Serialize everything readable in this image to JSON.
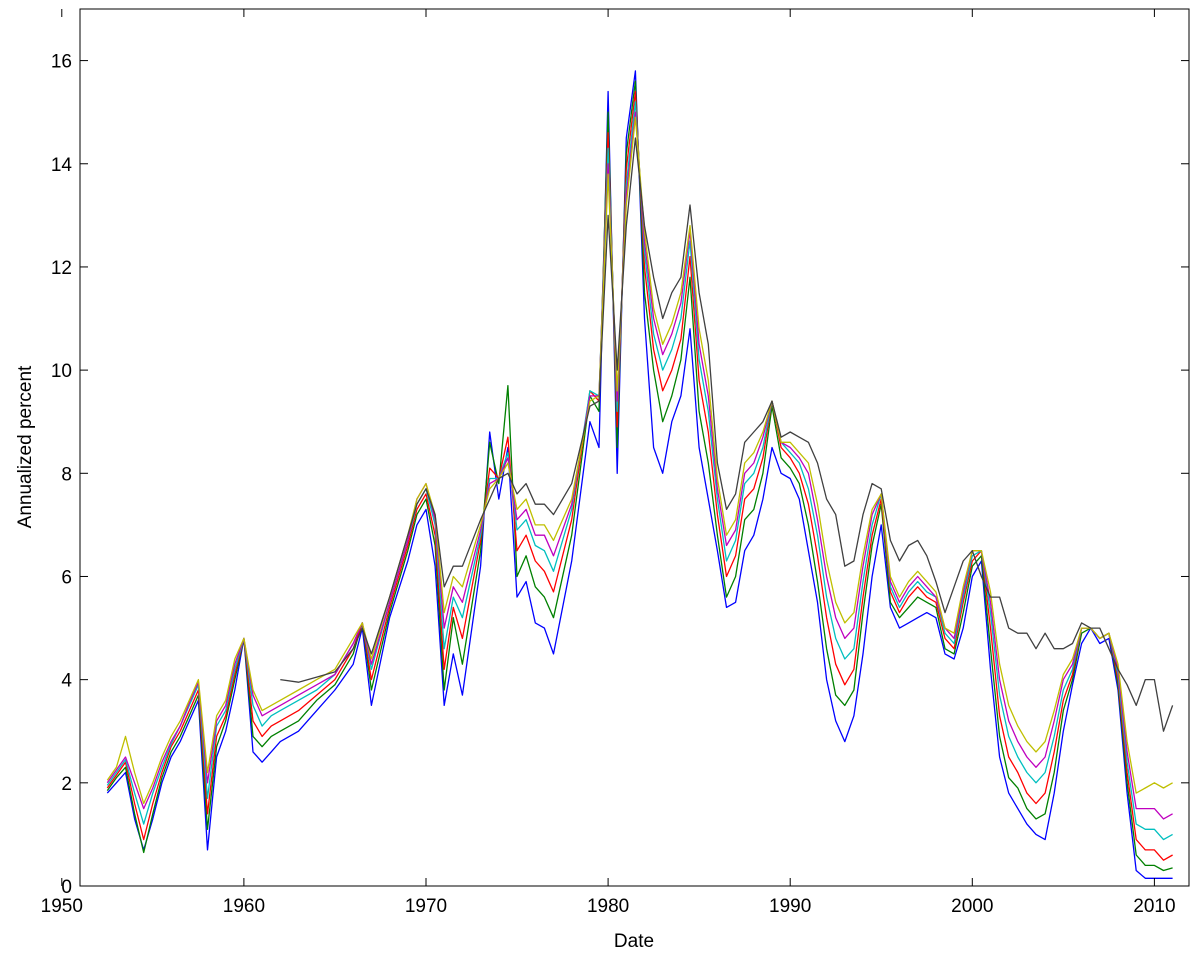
{
  "chart_data": {
    "type": "line",
    "title": "",
    "xlabel": "Date",
    "ylabel": "Annualized percent",
    "xlim": [
      1951,
      2011.9
    ],
    "ylim": [
      0,
      17
    ],
    "xticks": [
      1950,
      1960,
      1970,
      1980,
      1990,
      2000,
      2010
    ],
    "yticks": [
      0,
      2,
      4,
      6,
      8,
      10,
      12,
      14,
      16
    ],
    "grid": false,
    "legend": "none",
    "x": [
      1952.5,
      1953.0,
      1953.5,
      1954.0,
      1954.5,
      1955.0,
      1955.5,
      1956.0,
      1956.5,
      1957.0,
      1957.5,
      1958.0,
      1958.5,
      1959.0,
      1959.5,
      1960.0,
      1960.5,
      1961.0,
      1961.5,
      1962.0,
      1963.0,
      1964.0,
      1965.0,
      1966.0,
      1966.5,
      1967.0,
      1968.0,
      1969.0,
      1969.5,
      1970.0,
      1970.5,
      1971.0,
      1971.5,
      1972.0,
      1973.0,
      1973.5,
      1974.0,
      1974.5,
      1975.0,
      1975.5,
      1976.0,
      1976.5,
      1977.0,
      1978.0,
      1979.0,
      1979.5,
      1980.0,
      1980.5,
      1981.0,
      1981.5,
      1982.0,
      1982.5,
      1983.0,
      1983.5,
      1984.0,
      1984.5,
      1985.0,
      1985.5,
      1986.0,
      1986.5,
      1987.0,
      1987.5,
      1988.0,
      1988.5,
      1989.0,
      1989.5,
      1990.0,
      1990.5,
      1991.0,
      1991.5,
      1992.0,
      1992.5,
      1993.0,
      1993.5,
      1994.0,
      1994.5,
      1995.0,
      1995.5,
      1996.0,
      1996.5,
      1997.0,
      1997.5,
      1998.0,
      1998.5,
      1999.0,
      1999.5,
      2000.0,
      2000.5,
      2001.0,
      2001.5,
      2002.0,
      2002.5,
      2003.0,
      2003.5,
      2004.0,
      2004.5,
      2005.0,
      2005.5,
      2006.0,
      2006.5,
      2007.0,
      2007.5,
      2008.0,
      2008.5,
      2009.0,
      2009.5,
      2010.0,
      2010.5,
      2011.0
    ],
    "series": [
      {
        "color": "#0000ff",
        "values": [
          1.8,
          2.0,
          2.2,
          1.3,
          0.7,
          1.3,
          2.0,
          2.5,
          2.8,
          3.2,
          3.6,
          0.7,
          2.5,
          3.0,
          3.8,
          4.8,
          2.6,
          2.4,
          2.6,
          2.8,
          3.0,
          3.4,
          3.8,
          4.3,
          5.0,
          3.5,
          5.2,
          6.3,
          7.0,
          7.3,
          6.2,
          3.5,
          4.5,
          3.7,
          6.2,
          8.8,
          7.5,
          8.5,
          5.6,
          5.9,
          5.1,
          5.0,
          4.5,
          6.3,
          9.0,
          8.5,
          15.4,
          8.0,
          14.5,
          15.8,
          11.0,
          8.5,
          8.0,
          9.0,
          9.5,
          10.8,
          8.5,
          7.5,
          6.5,
          5.4,
          5.5,
          6.5,
          6.8,
          7.5,
          8.5,
          8.0,
          7.9,
          7.5,
          6.5,
          5.5,
          4.0,
          3.2,
          2.8,
          3.3,
          4.5,
          6.0,
          7.0,
          5.4,
          5.0,
          5.1,
          5.2,
          5.3,
          5.2,
          4.5,
          4.4,
          5.0,
          6.0,
          6.3,
          4.2,
          2.5,
          1.8,
          1.5,
          1.2,
          1.0,
          0.9,
          1.8,
          3.0,
          3.9,
          4.7,
          5.0,
          4.7,
          4.8,
          3.8,
          1.8,
          0.3,
          0.15,
          0.15,
          0.15,
          0.15
        ]
      },
      {
        "color": "#008000",
        "values": [
          1.85,
          2.1,
          2.3,
          1.4,
          0.65,
          1.4,
          2.1,
          2.6,
          2.9,
          3.3,
          3.7,
          1.1,
          2.7,
          3.2,
          4.0,
          4.8,
          2.9,
          2.7,
          2.9,
          3.0,
          3.2,
          3.6,
          3.9,
          4.5,
          5.1,
          3.8,
          5.3,
          6.5,
          7.2,
          7.5,
          6.6,
          3.8,
          5.2,
          4.3,
          6.5,
          8.6,
          7.8,
          9.7,
          6.0,
          6.4,
          5.8,
          5.6,
          5.2,
          6.8,
          9.5,
          9.2,
          15.0,
          8.5,
          14.2,
          15.6,
          11.5,
          10.0,
          9.0,
          9.5,
          10.2,
          11.8,
          9.2,
          8.2,
          6.8,
          5.6,
          6.0,
          7.1,
          7.3,
          8.0,
          9.3,
          8.3,
          8.1,
          7.8,
          7.0,
          5.9,
          4.6,
          3.7,
          3.5,
          3.8,
          5.3,
          6.6,
          7.4,
          5.5,
          5.2,
          5.4,
          5.6,
          5.5,
          5.4,
          4.6,
          4.5,
          5.3,
          6.2,
          6.4,
          4.6,
          2.9,
          2.1,
          1.9,
          1.5,
          1.3,
          1.4,
          2.2,
          3.4,
          4.0,
          4.9,
          5.0,
          4.8,
          4.9,
          3.9,
          2.0,
          0.6,
          0.4,
          0.4,
          0.3,
          0.35
        ]
      },
      {
        "color": "#ff0000",
        "values": [
          1.9,
          2.15,
          2.4,
          1.6,
          0.9,
          1.6,
          2.2,
          2.7,
          3.0,
          3.4,
          3.8,
          1.4,
          2.9,
          3.3,
          4.1,
          4.8,
          3.2,
          2.9,
          3.1,
          3.2,
          3.4,
          3.7,
          4.0,
          4.6,
          5.1,
          4.0,
          5.4,
          6.6,
          7.3,
          7.6,
          6.8,
          4.2,
          5.4,
          4.8,
          6.7,
          8.1,
          7.9,
          8.7,
          6.5,
          6.8,
          6.3,
          6.1,
          5.7,
          7.1,
          9.6,
          9.4,
          14.6,
          8.9,
          13.9,
          15.4,
          12.0,
          10.4,
          9.6,
          10.0,
          10.6,
          12.2,
          9.8,
          8.8,
          7.2,
          6.0,
          6.4,
          7.5,
          7.7,
          8.3,
          9.4,
          8.5,
          8.3,
          8.0,
          7.4,
          6.4,
          5.2,
          4.3,
          3.9,
          4.2,
          5.6,
          6.8,
          7.5,
          5.7,
          5.3,
          5.6,
          5.8,
          5.6,
          5.5,
          4.8,
          4.6,
          5.5,
          6.3,
          6.5,
          5.0,
          3.3,
          2.5,
          2.2,
          1.8,
          1.6,
          1.8,
          2.6,
          3.6,
          4.1,
          5.0,
          5.0,
          4.8,
          4.9,
          4.0,
          2.2,
          0.9,
          0.7,
          0.7,
          0.5,
          0.6
        ]
      },
      {
        "color": "#00bfbf",
        "values": [
          1.95,
          2.2,
          2.45,
          1.8,
          1.2,
          1.8,
          2.3,
          2.75,
          3.1,
          3.5,
          3.9,
          1.7,
          3.1,
          3.4,
          4.2,
          4.8,
          3.5,
          3.1,
          3.3,
          3.4,
          3.6,
          3.8,
          4.1,
          4.7,
          5.1,
          4.2,
          5.5,
          6.7,
          7.4,
          7.7,
          7.0,
          4.6,
          5.6,
          5.2,
          6.8,
          7.9,
          7.9,
          8.4,
          6.9,
          7.1,
          6.6,
          6.5,
          6.1,
          7.3,
          9.6,
          9.5,
          14.3,
          9.2,
          13.6,
          15.2,
          12.3,
          10.7,
          10.0,
          10.4,
          11.0,
          12.5,
          10.2,
          9.2,
          7.5,
          6.3,
          6.7,
          7.8,
          8.0,
          8.5,
          9.4,
          8.6,
          8.4,
          8.2,
          7.7,
          6.8,
          5.6,
          4.8,
          4.4,
          4.6,
          5.9,
          7.0,
          7.6,
          5.8,
          5.4,
          5.7,
          5.9,
          5.7,
          5.6,
          4.9,
          4.7,
          5.6,
          6.4,
          6.5,
          5.3,
          3.7,
          2.9,
          2.5,
          2.2,
          2.0,
          2.2,
          2.9,
          3.8,
          4.2,
          5.0,
          5.0,
          4.8,
          4.9,
          4.1,
          2.4,
          1.2,
          1.1,
          1.1,
          0.9,
          1.0
        ]
      },
      {
        "color": "#bf00bf",
        "values": [
          2.0,
          2.25,
          2.5,
          2.0,
          1.5,
          1.9,
          2.4,
          2.8,
          3.1,
          3.55,
          3.95,
          2.0,
          3.2,
          3.5,
          4.3,
          4.8,
          3.7,
          3.3,
          3.4,
          3.5,
          3.7,
          3.9,
          4.1,
          4.7,
          5.1,
          4.3,
          5.5,
          6.7,
          7.5,
          7.8,
          7.1,
          5.0,
          5.8,
          5.5,
          6.9,
          7.8,
          7.9,
          8.3,
          7.1,
          7.3,
          6.8,
          6.8,
          6.4,
          7.4,
          9.5,
          9.5,
          14.0,
          9.4,
          13.4,
          15.0,
          12.5,
          11.0,
          10.3,
          10.7,
          11.3,
          12.7,
          10.5,
          9.5,
          7.7,
          6.6,
          6.9,
          8.0,
          8.2,
          8.7,
          9.4,
          8.6,
          8.5,
          8.3,
          8.0,
          7.1,
          6.0,
          5.2,
          4.8,
          5.0,
          6.2,
          7.2,
          7.6,
          5.9,
          5.5,
          5.8,
          6.0,
          5.8,
          5.6,
          5.0,
          4.8,
          5.7,
          6.5,
          6.5,
          5.5,
          4.0,
          3.2,
          2.8,
          2.5,
          2.3,
          2.5,
          3.2,
          4.0,
          4.3,
          5.0,
          5.0,
          4.8,
          4.9,
          4.2,
          2.6,
          1.5,
          1.5,
          1.5,
          1.3,
          1.4
        ]
      },
      {
        "color": "#bfbf00",
        "values": [
          2.05,
          2.3,
          2.9,
          2.2,
          1.6,
          2.0,
          2.5,
          2.9,
          3.2,
          3.6,
          4.0,
          2.2,
          3.3,
          3.6,
          4.4,
          4.8,
          3.8,
          3.4,
          3.5,
          3.6,
          3.8,
          4.0,
          4.2,
          4.8,
          5.1,
          4.4,
          5.6,
          6.8,
          7.5,
          7.8,
          7.2,
          5.3,
          6.0,
          5.8,
          7.0,
          7.7,
          7.9,
          8.2,
          7.3,
          7.5,
          7.0,
          7.0,
          6.7,
          7.5,
          9.4,
          9.5,
          13.8,
          9.6,
          13.2,
          14.9,
          12.7,
          11.2,
          10.5,
          10.9,
          11.5,
          12.8,
          10.8,
          9.8,
          7.9,
          6.8,
          7.1,
          8.2,
          8.4,
          8.8,
          9.4,
          8.6,
          8.6,
          8.4,
          8.2,
          7.4,
          6.3,
          5.5,
          5.1,
          5.3,
          6.4,
          7.3,
          7.6,
          6.0,
          5.6,
          5.9,
          6.1,
          5.9,
          5.7,
          5.0,
          4.9,
          5.8,
          6.5,
          6.5,
          5.7,
          4.3,
          3.5,
          3.1,
          2.8,
          2.6,
          2.8,
          3.4,
          4.1,
          4.4,
          5.0,
          5.0,
          4.8,
          4.9,
          4.3,
          2.8,
          1.8,
          1.9,
          2.0,
          1.9,
          2.0
        ]
      },
      {
        "color": "#404040",
        "values": [
          null,
          null,
          null,
          null,
          null,
          null,
          null,
          null,
          null,
          null,
          null,
          null,
          null,
          null,
          null,
          null,
          null,
          null,
          null,
          4.0,
          3.95,
          4.05,
          4.15,
          4.6,
          5.0,
          4.5,
          5.6,
          6.8,
          7.4,
          7.7,
          7.2,
          5.8,
          6.2,
          6.2,
          7.1,
          7.5,
          7.9,
          8.0,
          7.6,
          7.8,
          7.4,
          7.4,
          7.2,
          7.8,
          9.3,
          9.4,
          13.0,
          10.0,
          12.8,
          14.5,
          12.8,
          11.8,
          11.0,
          11.5,
          11.8,
          13.2,
          11.5,
          10.5,
          8.2,
          7.3,
          7.6,
          8.6,
          8.8,
          9.0,
          9.4,
          8.7,
          8.8,
          8.7,
          8.6,
          8.2,
          7.5,
          7.2,
          6.2,
          6.3,
          7.2,
          7.8,
          7.7,
          6.7,
          6.3,
          6.6,
          6.7,
          6.4,
          5.9,
          5.3,
          5.8,
          6.3,
          6.5,
          6.0,
          5.6,
          5.6,
          5.0,
          4.9,
          4.9,
          4.6,
          4.9,
          4.6,
          4.6,
          4.7,
          5.1,
          5.0,
          5.0,
          4.6,
          4.2,
          3.9,
          3.5,
          4.0,
          4.0,
          3.0,
          3.5
        ]
      }
    ]
  }
}
